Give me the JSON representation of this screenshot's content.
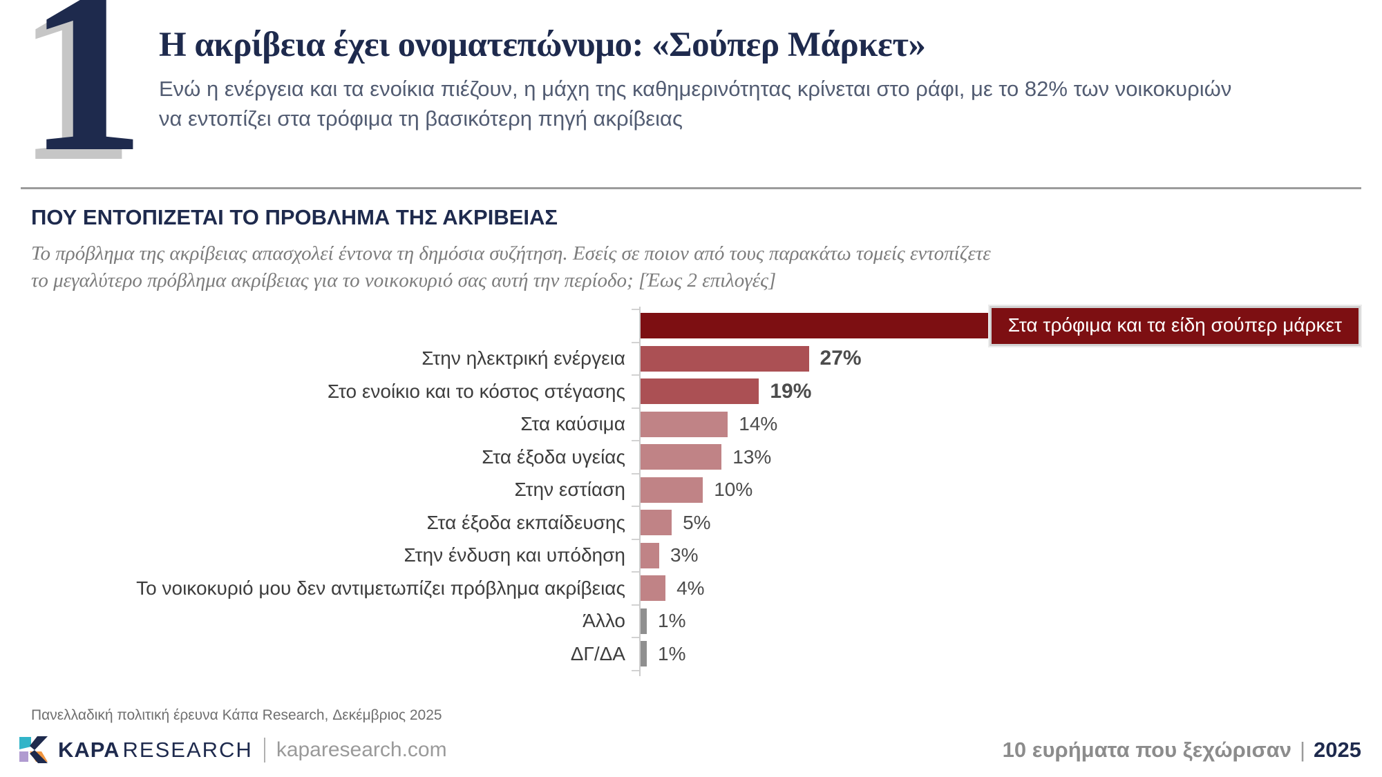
{
  "header": {
    "number": "1",
    "title": "Η ακρίβεια έχει ονοματεπώνυμο: «Σούπερ Μάρκετ»",
    "subtitle_line1": "Ενώ η ενέργεια και τα ενοίκια πιέζουν, η μάχη της καθημερινότητας κρίνεται στο ράφι, με το 82% των νοικοκυριών",
    "subtitle_line2": "να εντοπίζει στα τρόφιμα τη βασικότερη πηγή ακρίβειας"
  },
  "section": {
    "heading": "ΠΟΥ ΕΝΤΟΠΙΖΕΤΑΙ ΤΟ ΠΡΟΒΛΗΜΑ ΤΗΣ ΑΚΡΙΒΕΙΑΣ",
    "question_line1": "Το πρόβλημα της ακρίβειας απασχολεί έντονα τη δημόσια συζήτηση. Εσείς σε ποιον από τους παρακάτω τομείς εντοπίζετε",
    "question_line2": "το μεγαλύτερο πρόβλημα ακρίβειας για το νοικοκυριό σας αυτή την περίοδο; [Έως 2 επιλογές]"
  },
  "chart_data": {
    "type": "bar",
    "orientation": "horizontal",
    "title": "ΠΟΥ ΕΝΤΟΠΙΖΕΤΑΙ ΤΟ ΠΡΟΒΛΗΜΑ ΤΗΣ ΑΚΡΙΒΕΙΑΣ",
    "categories": [
      "Στα τρόφιμα και τα είδη σούπερ μάρκετ",
      "Στην ηλεκτρική ενέργεια",
      "Στο ενοίκιο και το κόστος στέγασης",
      "Στα καύσιμα",
      "Στα έξοδα υγείας",
      "Στην εστίαση",
      "Στα έξοδα εκπαίδευσης",
      "Στην ένδυση και υπόδηση",
      "Το νοικοκυριό μου δεν αντιμετωπίζει πρόβλημα ακρίβειας",
      "Άλλο",
      "ΔΓ/ΔΑ"
    ],
    "values": [
      82,
      27,
      19,
      14,
      13,
      10,
      5,
      3,
      4,
      1,
      1
    ],
    "value_labels": [
      "82%",
      "27%",
      "19%",
      "14%",
      "13%",
      "10%",
      "5%",
      "3%",
      "4%",
      "1%",
      "1%"
    ],
    "emphasis": [
      "highlight",
      "strong",
      "strong",
      "medium",
      "medium",
      "medium",
      "medium",
      "medium",
      "medium",
      "muted",
      "muted"
    ],
    "xlim": [
      0,
      100
    ],
    "grid": false,
    "legend": false,
    "palette": {
      "highlight": "#7d0f12",
      "strong": "#ab5054",
      "medium": "#c08386",
      "muted": "#8f8f8f"
    }
  },
  "footnote": "Πανελλαδική πολιτική έρευνα Κάπα Research, Δεκέμβριος 2025",
  "footer": {
    "brand_kapa": "KAPA",
    "brand_research": "RESEARCH",
    "website": "kaparesearch.com",
    "right_text": "10 ευρήματα που ξεχώρισαν",
    "right_pipe": "|",
    "right_year": "2025",
    "logo_colors": {
      "teal": "#32b4c8",
      "navy": "#1e2a4d",
      "purple": "#b09bd0",
      "orange": "#f0953f"
    }
  }
}
